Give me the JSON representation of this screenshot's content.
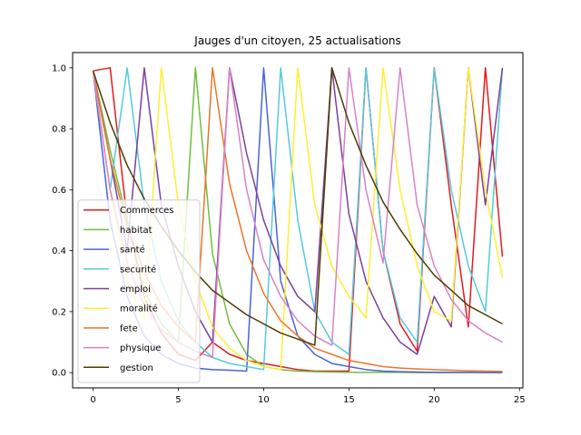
{
  "chart_data": {
    "type": "line",
    "title": "Jauges d'un citoyen, 25 actualisations",
    "xlabel": "",
    "ylabel": "",
    "xlim": [
      -1.2,
      25.2
    ],
    "ylim": [
      -0.05,
      1.05
    ],
    "xticks": [
      0,
      5,
      10,
      15,
      20,
      25
    ],
    "yticks": [
      0.0,
      0.2,
      0.4,
      0.6,
      0.8,
      1.0
    ],
    "ytick_labels": [
      "0.0",
      "0.2",
      "0.4",
      "0.6",
      "0.8",
      "1.0"
    ],
    "legend_position": "lower-left",
    "grid": false,
    "x": [
      0,
      1,
      2,
      3,
      4,
      5,
      6,
      7,
      8,
      9,
      10,
      11,
      12,
      13,
      14,
      15,
      16,
      17,
      18,
      19,
      20,
      21,
      22,
      23,
      24
    ],
    "series": [
      {
        "name": "Commerces",
        "color": "#e41a1c",
        "values": [
          0.99,
          1.0,
          0.5,
          0.25,
          0.13,
          0.06,
          0.04,
          0.1,
          0.06,
          0.04,
          0.03,
          0.02,
          0.01,
          0.005,
          0.005,
          0.005,
          1.0,
          0.4,
          0.16,
          0.07,
          1.0,
          0.55,
          0.15,
          1.0,
          0.38
        ]
      },
      {
        "name": "habitat",
        "color": "#6ec03e",
        "values": [
          0.99,
          0.73,
          0.5,
          0.27,
          0.16,
          0.1,
          1.0,
          0.39,
          0.16,
          0.06,
          0.02,
          0.01,
          0.005,
          0.003,
          0.002,
          0.001,
          0.001,
          0.001,
          0.001,
          0.0,
          0.0,
          0.0,
          0.0,
          0.0,
          0.0
        ]
      },
      {
        "name": "santé",
        "color": "#4a63d8",
        "values": [
          0.99,
          0.5,
          0.25,
          0.12,
          0.06,
          0.03,
          0.015,
          0.01,
          0.008,
          0.005,
          1.0,
          0.3,
          0.12,
          0.06,
          0.03,
          0.02,
          0.01,
          0.005,
          0.003,
          0.002,
          0.001,
          0.001,
          0.001,
          0.0,
          0.0
        ]
      },
      {
        "name": "securité",
        "color": "#56c9de",
        "values": [
          0.99,
          0.6,
          1.0,
          0.55,
          0.3,
          0.17,
          0.1,
          0.05,
          0.03,
          0.02,
          0.01,
          1.0,
          0.5,
          0.2,
          0.1,
          0.06,
          1.0,
          0.4,
          0.18,
          0.1,
          1.0,
          0.6,
          0.35,
          0.2,
          1.0
        ]
      },
      {
        "name": "emploi",
        "color": "#7b3fa0",
        "values": [
          0.99,
          0.7,
          0.4,
          1.0,
          0.55,
          0.35,
          0.2,
          0.1,
          1.0,
          0.72,
          0.5,
          0.35,
          0.25,
          0.2,
          1.0,
          0.52,
          0.3,
          0.18,
          0.1,
          0.06,
          0.25,
          0.15,
          1.0,
          0.55,
          1.0
        ]
      },
      {
        "name": "moralité",
        "color": "#ffee33",
        "values": [
          0.99,
          0.6,
          0.3,
          0.17,
          1.0,
          0.55,
          0.3,
          0.15,
          0.08,
          0.04,
          0.02,
          0.01,
          1.0,
          0.55,
          0.35,
          0.25,
          0.18,
          1.0,
          0.6,
          0.35,
          0.2,
          0.17,
          1.0,
          0.6,
          0.31
        ]
      },
      {
        "name": "fete",
        "color": "#e8762b",
        "values": [
          0.99,
          0.7,
          0.48,
          0.33,
          0.22,
          0.15,
          0.1,
          1.0,
          0.62,
          0.4,
          0.26,
          0.17,
          0.12,
          0.08,
          0.06,
          0.04,
          0.03,
          0.02,
          0.015,
          0.012,
          0.01,
          0.008,
          0.006,
          0.005,
          0.004
        ]
      },
      {
        "name": "physique",
        "color": "#d783c5",
        "values": [
          0.99,
          0.6,
          0.36,
          0.22,
          0.14,
          0.1,
          0.07,
          0.05,
          1.0,
          0.6,
          0.37,
          0.25,
          0.17,
          0.12,
          0.09,
          1.0,
          0.6,
          0.36,
          1.0,
          0.55,
          0.35,
          0.24,
          0.17,
          0.13,
          0.1
        ]
      },
      {
        "name": "gestion",
        "color": "#4d3c00",
        "values": [
          0.99,
          0.82,
          0.68,
          0.57,
          0.48,
          0.4,
          0.33,
          0.27,
          0.23,
          0.19,
          0.16,
          0.13,
          0.11,
          0.09,
          1.0,
          0.82,
          0.68,
          0.56,
          0.47,
          0.39,
          0.32,
          0.27,
          0.22,
          0.19,
          0.16
        ]
      }
    ]
  }
}
